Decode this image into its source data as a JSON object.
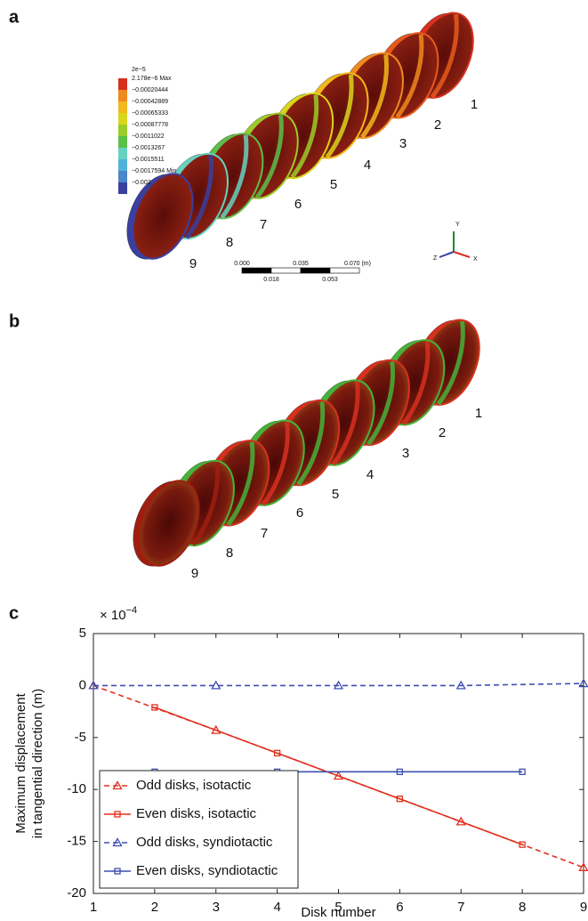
{
  "panel_labels": [
    "a",
    "b",
    "c"
  ],
  "panel_a": {
    "colorbar_labels": [
      "2e−5",
      "2.178e−6 Max",
      "−0.00020444",
      "−0.00042889",
      "−0.00065333",
      "−0.00087778",
      "−0.0011022",
      "−0.0013267",
      "−0.0015511",
      "−0.0017594 Min",
      "−0.002"
    ],
    "colorbar_colors": [
      "#d7301f",
      "#f08a1c",
      "#f3b81b",
      "#d9d61c",
      "#9ccb2a",
      "#5cbf4a",
      "#66d2c0",
      "#4fb3d6",
      "#4a86c8",
      "#3a3fa0"
    ],
    "disk_numbers": [
      "1",
      "2",
      "3",
      "4",
      "5",
      "6",
      "7",
      "8",
      "9"
    ],
    "scale_top": [
      "0.000",
      "0.035",
      "0.070 (m)"
    ],
    "scale_bottom": [
      "0.018",
      "0.053"
    ],
    "axes": [
      "Y",
      "Z",
      "X"
    ]
  },
  "panel_b": {
    "disk_numbers": [
      "1",
      "2",
      "3",
      "4",
      "5",
      "6",
      "7",
      "8",
      "9"
    ]
  },
  "chart_data": {
    "type": "line",
    "multiplier": {
      "base": "× 10",
      "exponent": "−4"
    },
    "xlabel": "Disk number",
    "ylabel": [
      "Maximum displacement",
      "in tangential direction (m)"
    ],
    "xlim": [
      1,
      9
    ],
    "xticks": [
      1,
      2,
      3,
      4,
      5,
      6,
      7,
      8,
      9
    ],
    "ylim": [
      -20,
      5
    ],
    "yticks": [
      5,
      0,
      -5,
      -10,
      -15,
      -20
    ],
    "legend": "lower left",
    "series": [
      {
        "name": "Odd disks, isotactic",
        "color": "#e0301e",
        "dashed": true,
        "marker": "triangle",
        "x": [
          1,
          3,
          5,
          7,
          9
        ],
        "values": [
          0,
          -4.3,
          -8.7,
          -13.1,
          -17.5
        ]
      },
      {
        "name": "Even disks, isotactic",
        "color": "#e0301e",
        "dashed": false,
        "marker": "square",
        "x": [
          2,
          4,
          6,
          8
        ],
        "values": [
          -2.1,
          -6.5,
          -10.9,
          -15.3
        ]
      },
      {
        "name": "Odd disks, syndiotactic",
        "color": "#3f4fb0",
        "dashed": true,
        "marker": "triangle",
        "x": [
          1,
          3,
          5,
          7,
          9
        ],
        "values": [
          0,
          0,
          0,
          0,
          0.2
        ]
      },
      {
        "name": "Even disks, syndiotactic",
        "color": "#3f4fb0",
        "dashed": false,
        "marker": "square",
        "x": [
          2,
          4,
          6,
          8
        ],
        "values": [
          -8.3,
          -8.3,
          -8.3,
          -8.3
        ]
      }
    ]
  }
}
